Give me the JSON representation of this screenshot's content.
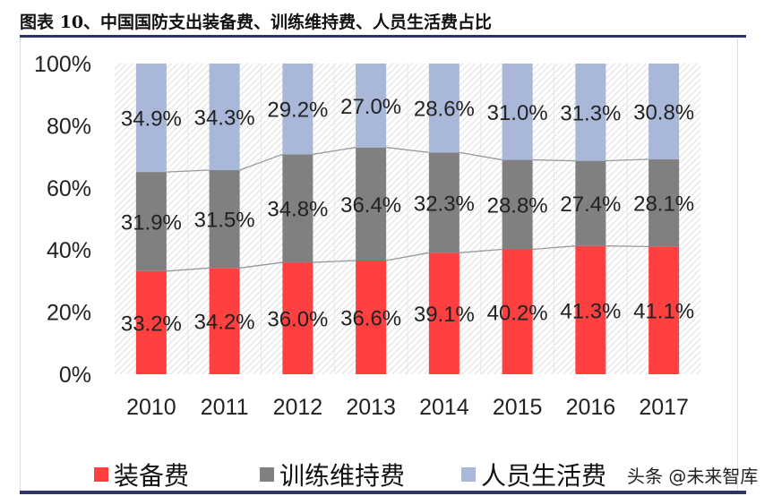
{
  "title": "图表 10、中国国防支出装备费、训练维持费、人员生活费占比",
  "watermark": "头条 @未来智库",
  "chart_data": {
    "type": "bar",
    "stacked": true,
    "categories": [
      "2010",
      "2011",
      "2012",
      "2013",
      "2014",
      "2015",
      "2016",
      "2017"
    ],
    "series": [
      {
        "name": "装备费",
        "color": "#ff4040",
        "values": [
          33.2,
          34.2,
          36.0,
          36.6,
          39.1,
          40.2,
          41.3,
          41.1
        ]
      },
      {
        "name": "训练维持费",
        "color": "#808080",
        "values": [
          31.9,
          31.5,
          34.8,
          36.4,
          32.3,
          28.8,
          27.4,
          28.1
        ]
      },
      {
        "name": "人员生活费",
        "color": "#a9b8d8",
        "values": [
          34.9,
          34.3,
          29.2,
          27.0,
          28.6,
          31.0,
          31.3,
          30.8
        ]
      }
    ],
    "yticks": [
      "0%",
      "20%",
      "40%",
      "60%",
      "80%",
      "100%"
    ],
    "ylim": [
      0,
      100
    ],
    "legend": "bottom",
    "series_lines": true
  }
}
